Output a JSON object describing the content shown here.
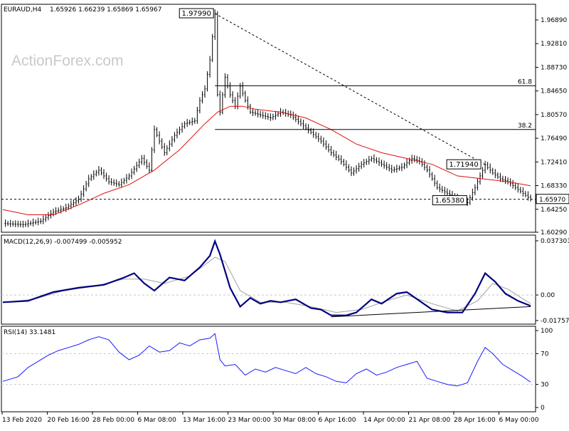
{
  "header": {
    "symbol": "EURAUD,H4",
    "ohlc": "1.65926 1.66239 1.65869 1.65967"
  },
  "watermark": "ActionForex.com",
  "colors": {
    "candle": "#000000",
    "ma": "#e01010",
    "macd": "#000080",
    "signal": "#a0a0a0",
    "rsi": "#1a1aff",
    "grid_ref": "#c8c8c8"
  },
  "chart_data": [
    {
      "type": "candlestick",
      "title": "EURAUD,H4",
      "ylim": [
        1.6,
        2.0
      ],
      "y_ticks": [
        "1.96890",
        "1.92810",
        "1.88730",
        "1.84650",
        "1.80570",
        "1.76490",
        "1.72410",
        "1.68330",
        "1.64250",
        "1.60290"
      ],
      "x_labels": [
        "13 Feb 2020",
        "20 Feb 16:00",
        "28 Feb 00:00",
        "6 Mar 08:00",
        "13 Mar 16:00",
        "23 Mar 00:00",
        "30 Mar 08:00",
        "6 Apr 16:00",
        "14 Apr 00:00",
        "21 Apr 08:00",
        "28 Apr 16:00",
        "6 May 00:00"
      ],
      "price_path": [
        [
          0,
          1.618
        ],
        [
          8,
          1.616
        ],
        [
          15,
          1.622
        ],
        [
          20,
          1.638
        ],
        [
          25,
          1.645
        ],
        [
          30,
          1.66
        ],
        [
          34,
          1.695
        ],
        [
          38,
          1.71
        ],
        [
          42,
          1.69
        ],
        [
          46,
          1.685
        ],
        [
          50,
          1.7
        ],
        [
          55,
          1.73
        ],
        [
          58,
          1.71
        ],
        [
          60,
          1.78
        ],
        [
          64,
          1.74
        ],
        [
          68,
          1.77
        ],
        [
          72,
          1.79
        ],
        [
          76,
          1.795
        ],
        [
          78,
          1.83
        ],
        [
          80,
          1.85
        ],
        [
          82,
          1.9
        ],
        [
          84,
          1.9799
        ],
        [
          85,
          1.84
        ],
        [
          86,
          1.81
        ],
        [
          88,
          1.87
        ],
        [
          90,
          1.84
        ],
        [
          92,
          1.82
        ],
        [
          94,
          1.855
        ],
        [
          96,
          1.83
        ],
        [
          98,
          1.81
        ],
        [
          102,
          1.805
        ],
        [
          106,
          1.8
        ],
        [
          110,
          1.81
        ],
        [
          114,
          1.805
        ],
        [
          118,
          1.79
        ],
        [
          122,
          1.775
        ],
        [
          126,
          1.76
        ],
        [
          130,
          1.74
        ],
        [
          134,
          1.725
        ],
        [
          138,
          1.705
        ],
        [
          142,
          1.72
        ],
        [
          146,
          1.73
        ],
        [
          150,
          1.72
        ],
        [
          154,
          1.71
        ],
        [
          158,
          1.715
        ],
        [
          162,
          1.73
        ],
        [
          165,
          1.725
        ],
        [
          168,
          1.71
        ],
        [
          172,
          1.68
        ],
        [
          176,
          1.67
        ],
        [
          180,
          1.66
        ],
        [
          184,
          1.6538
        ],
        [
          187,
          1.68
        ],
        [
          189,
          1.7
        ],
        [
          191,
          1.7194
        ],
        [
          194,
          1.705
        ],
        [
          197,
          1.695
        ],
        [
          200,
          1.69
        ],
        [
          203,
          1.68
        ],
        [
          206,
          1.67
        ],
        [
          209,
          1.6597
        ]
      ],
      "moving_average_path": [
        [
          0,
          1.642
        ],
        [
          10,
          1.633
        ],
        [
          20,
          1.633
        ],
        [
          30,
          1.65
        ],
        [
          40,
          1.67
        ],
        [
          50,
          1.685
        ],
        [
          60,
          1.71
        ],
        [
          70,
          1.745
        ],
        [
          80,
          1.79
        ],
        [
          85,
          1.81
        ],
        [
          90,
          1.82
        ],
        [
          95,
          1.82
        ],
        [
          100,
          1.815
        ],
        [
          110,
          1.81
        ],
        [
          120,
          1.8
        ],
        [
          130,
          1.78
        ],
        [
          140,
          1.755
        ],
        [
          150,
          1.74
        ],
        [
          160,
          1.73
        ],
        [
          170,
          1.72
        ],
        [
          180,
          1.7
        ],
        [
          190,
          1.695
        ],
        [
          200,
          1.69
        ],
        [
          209,
          1.683
        ]
      ],
      "annotations": {
        "high_label": "1.97990",
        "low_label": "1.65380",
        "swing_label": "1.71940",
        "current_label": "1.65970",
        "fib_618": "61.8",
        "fib_382": "38.2"
      },
      "levels": {
        "high": 1.9799,
        "low": 1.6538,
        "swing": 1.7194,
        "current": 1.6597,
        "fib_618": 1.8555,
        "fib_382": 1.78
      }
    },
    {
      "type": "line",
      "title": "MACD(12,26,9) -0.007499 -0.005952",
      "ylim": [
        -0.022,
        0.04
      ],
      "y_ticks": [
        "0.037301",
        "0.00",
        "-0.017577"
      ],
      "series": [
        {
          "name": "MACD",
          "path": [
            [
              0,
              -0.005
            ],
            [
              10,
              -0.004
            ],
            [
              20,
              0.002
            ],
            [
              30,
              0.005
            ],
            [
              40,
              0.007
            ],
            [
              48,
              0.012
            ],
            [
              52,
              0.015
            ],
            [
              56,
              0.008
            ],
            [
              60,
              0.003
            ],
            [
              66,
              0.012
            ],
            [
              72,
              0.01
            ],
            [
              78,
              0.019
            ],
            [
              82,
              0.027
            ],
            [
              84,
              0.037
            ],
            [
              86,
              0.028
            ],
            [
              90,
              0.005
            ],
            [
              94,
              -0.008
            ],
            [
              98,
              -0.002
            ],
            [
              102,
              -0.006
            ],
            [
              106,
              -0.004
            ],
            [
              110,
              -0.005
            ],
            [
              116,
              -0.003
            ],
            [
              122,
              -0.009
            ],
            [
              126,
              -0.01
            ],
            [
              130,
              -0.014
            ],
            [
              136,
              -0.014
            ],
            [
              140,
              -0.012
            ],
            [
              146,
              -0.003
            ],
            [
              150,
              -0.006
            ],
            [
              156,
              0.001
            ],
            [
              160,
              0.002
            ],
            [
              165,
              -0.004
            ],
            [
              170,
              -0.01
            ],
            [
              176,
              -0.012
            ],
            [
              182,
              -0.012
            ],
            [
              187,
              0.001
            ],
            [
              191,
              0.015
            ],
            [
              195,
              0.009
            ],
            [
              199,
              0.001
            ],
            [
              204,
              -0.004
            ],
            [
              209,
              -0.0075
            ]
          ]
        },
        {
          "name": "Signal",
          "path": [
            [
              0,
              -0.005
            ],
            [
              12,
              -0.003
            ],
            [
              24,
              0.003
            ],
            [
              36,
              0.006
            ],
            [
              48,
              0.011
            ],
            [
              56,
              0.011
            ],
            [
              64,
              0.008
            ],
            [
              74,
              0.013
            ],
            [
              84,
              0.026
            ],
            [
              88,
              0.023
            ],
            [
              94,
              0.003
            ],
            [
              102,
              -0.005
            ],
            [
              112,
              -0.005
            ],
            [
              122,
              -0.008
            ],
            [
              132,
              -0.012
            ],
            [
              142,
              -0.01
            ],
            [
              152,
              -0.004
            ],
            [
              160,
              0.0
            ],
            [
              170,
              -0.006
            ],
            [
              180,
              -0.011
            ],
            [
              188,
              -0.004
            ],
            [
              194,
              0.008
            ],
            [
              200,
              0.004
            ],
            [
              209,
              -0.006
            ]
          ]
        }
      ],
      "trendline": [
        [
          130,
          -0.015
        ],
        [
          209,
          -0.008
        ]
      ]
    },
    {
      "type": "line",
      "title": "RSI(14) 33.1481",
      "ylim": [
        0,
        100
      ],
      "y_ticks": [
        "100",
        "70",
        "30",
        "0"
      ],
      "series": [
        {
          "name": "RSI(14)",
          "path": [
            [
              0,
              34
            ],
            [
              6,
              40
            ],
            [
              10,
              52
            ],
            [
              14,
              60
            ],
            [
              18,
              68
            ],
            [
              22,
              74
            ],
            [
              26,
              78
            ],
            [
              30,
              82
            ],
            [
              34,
              88
            ],
            [
              38,
              92
            ],
            [
              42,
              88
            ],
            [
              46,
              72
            ],
            [
              50,
              62
            ],
            [
              54,
              68
            ],
            [
              58,
              80
            ],
            [
              62,
              72
            ],
            [
              66,
              74
            ],
            [
              70,
              84
            ],
            [
              74,
              80
            ],
            [
              78,
              88
            ],
            [
              82,
              90
            ],
            [
              84,
              96
            ],
            [
              86,
              62
            ],
            [
              88,
              54
            ],
            [
              92,
              56
            ],
            [
              96,
              42
            ],
            [
              100,
              50
            ],
            [
              104,
              46
            ],
            [
              108,
              52
            ],
            [
              112,
              48
            ],
            [
              116,
              44
            ],
            [
              120,
              52
            ],
            [
              124,
              44
            ],
            [
              128,
              40
            ],
            [
              132,
              34
            ],
            [
              136,
              32
            ],
            [
              140,
              44
            ],
            [
              144,
              50
            ],
            [
              148,
              42
            ],
            [
              152,
              46
            ],
            [
              156,
              52
            ],
            [
              160,
              56
            ],
            [
              164,
              60
            ],
            [
              168,
              38
            ],
            [
              172,
              34
            ],
            [
              176,
              30
            ],
            [
              180,
              28
            ],
            [
              184,
              32
            ],
            [
              188,
              60
            ],
            [
              191,
              78
            ],
            [
              194,
              70
            ],
            [
              198,
              56
            ],
            [
              202,
              48
            ],
            [
              206,
              40
            ],
            [
              209,
              33
            ]
          ]
        }
      ],
      "reference_lines": [
        70,
        30
      ]
    }
  ]
}
